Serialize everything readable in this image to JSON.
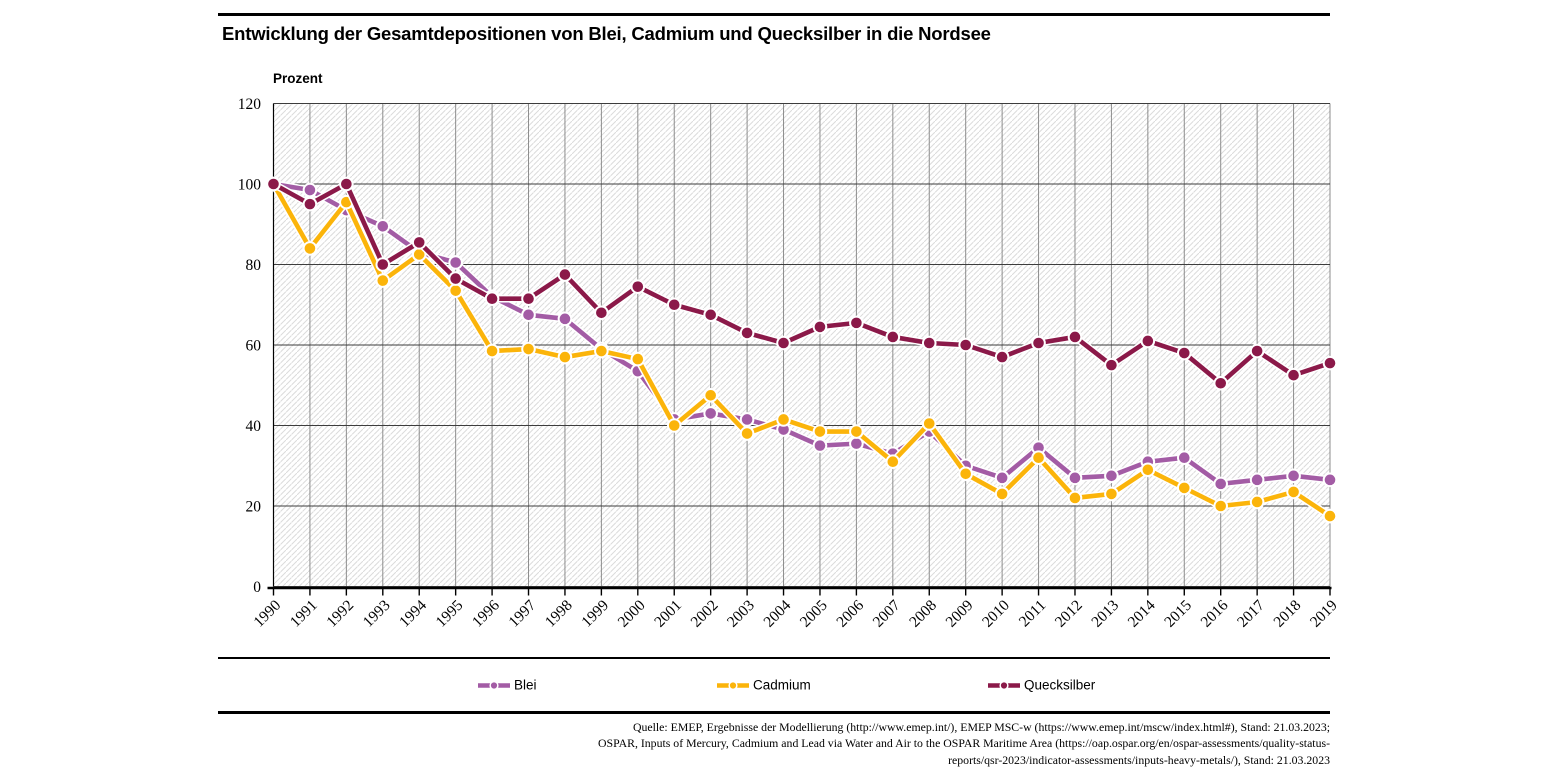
{
  "title": "Entwicklung der Gesamtdepositionen von Blei, Cadmium und Quecksilber in die Nordsee",
  "chart_data": {
    "type": "line",
    "title": "Entwicklung der Gesamtdepositionen von Blei, Cadmium und Quecksilber in die Nordsee",
    "xlabel": "",
    "ylabel": "Prozent",
    "ylim": [
      0,
      120
    ],
    "ytick_step": 20,
    "grid": true,
    "background": "hatched",
    "legend_position": "bottom",
    "x": [
      1990,
      1991,
      1992,
      1993,
      1994,
      1995,
      1996,
      1997,
      1998,
      1999,
      2000,
      2001,
      2002,
      2003,
      2004,
      2005,
      2006,
      2007,
      2008,
      2009,
      2010,
      2011,
      2012,
      2013,
      2014,
      2015,
      2016,
      2017,
      2018,
      2019
    ],
    "series": [
      {
        "name": "Blei",
        "color": "#A35CA5",
        "values": [
          100,
          98.5,
          93.5,
          89.5,
          83,
          80.5,
          72,
          67.5,
          66.5,
          59,
          53.5,
          41.5,
          43,
          41.5,
          39,
          35,
          35.5,
          33,
          38.5,
          30,
          27,
          34.5,
          27,
          27.5,
          31,
          32,
          25.5,
          26.5,
          27.5,
          26.5
        ]
      },
      {
        "name": "Cadmium",
        "color": "#FBB40A",
        "values": [
          100,
          84,
          95.5,
          76,
          82.5,
          73.5,
          58.5,
          59,
          57,
          58.5,
          56.5,
          40,
          47.5,
          38,
          41.5,
          38.5,
          38.5,
          31,
          40.5,
          28,
          23,
          32,
          22,
          23,
          29,
          24.5,
          20,
          21,
          23.5,
          17.5
        ]
      },
      {
        "name": "Quecksilber",
        "color": "#8B1949",
        "values": [
          100,
          95,
          100,
          80,
          85.5,
          76.5,
          71.5,
          71.5,
          77.5,
          68,
          74.5,
          70,
          67.5,
          63,
          60.5,
          64.5,
          65.5,
          62,
          60.5,
          60,
          57,
          60.5,
          62,
          55,
          61,
          58,
          50.5,
          58.5,
          52.5,
          55.5
        ]
      }
    ]
  },
  "colors": {
    "blei": "#A35CA5",
    "cadmium": "#FBB40A",
    "quecksilber": "#8B1949",
    "grid_horizontal": "#3D3D3D",
    "grid_vertical": "#8C8C8C",
    "hatch": "#DBDBDB",
    "axis": "#000000"
  },
  "footer": {
    "lines": [
      "Quelle: EMEP, Ergebnisse der Modellierung (http://www.emep.int/), EMEP MSC-w (https://www.emep.int/mscw/index.html#), Stand: 21.03.2023;",
      "OSPAR, Inputs of Mercury, Cadmium and Lead via Water and Air to the OSPAR Maritime Area (https://oap.ospar.org/en/ospar-assessments/quality-status-",
      "reports/qsr-2023/indicator-assessments/inputs-heavy-metals/), Stand: 21.03.2023"
    ]
  }
}
